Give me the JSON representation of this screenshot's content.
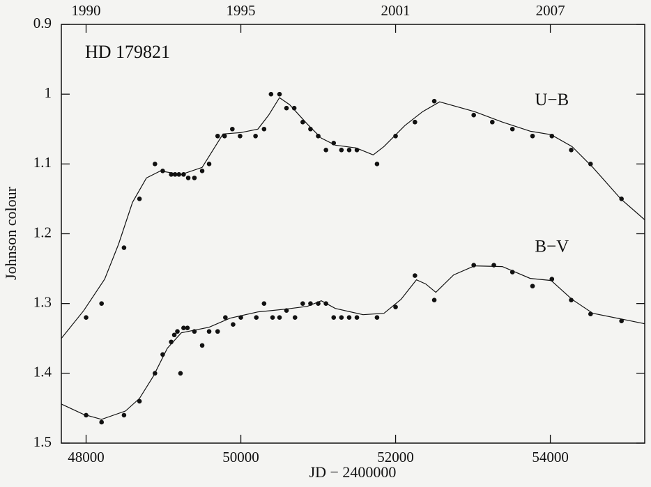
{
  "chart_data": {
    "type": "scatter",
    "title": "HD 179821",
    "xlabel": "JD − 2400000",
    "ylabel": "Johnson colour",
    "color": "#111111",
    "y_inverted": true,
    "xlim": [
      47680,
      55220
    ],
    "xticks": [
      48000,
      50000,
      52000,
      54000
    ],
    "x2ticks": [
      {
        "value": 48000,
        "label": "1990"
      },
      {
        "value": 50000,
        "label": "1995"
      },
      {
        "value": 52000,
        "label": "2001"
      },
      {
        "value": 54000,
        "label": "2007"
      }
    ],
    "ylim": [
      0.9,
      1.5
    ],
    "yticks": [
      0.9,
      1,
      1.1,
      1.2,
      1.3,
      1.4,
      1.5
    ],
    "series": [
      {
        "name": "U−B",
        "label_at": [
          53800,
          1.01
        ],
        "x": [
          48000,
          48200,
          48490,
          48690,
          48890,
          48990,
          49100,
          49150,
          49200,
          49260,
          49320,
          49400,
          49500,
          49590,
          49700,
          49790,
          49890,
          49990,
          50190,
          50300,
          50390,
          50500,
          50590,
          50690,
          50800,
          50900,
          51000,
          51100,
          51200,
          51300,
          51400,
          51500,
          51760,
          52000,
          52250,
          52500,
          53010,
          53250,
          53510,
          53770,
          54020,
          54270,
          54520,
          54920
        ],
        "values": [
          1.32,
          1.3,
          1.22,
          1.15,
          1.1,
          1.11,
          1.115,
          1.115,
          1.115,
          1.115,
          1.12,
          1.12,
          1.11,
          1.1,
          1.06,
          1.06,
          1.05,
          1.06,
          1.06,
          1.05,
          1.0,
          1.0,
          1.02,
          1.02,
          1.04,
          1.05,
          1.06,
          1.08,
          1.07,
          1.08,
          1.08,
          1.08,
          1.1,
          1.06,
          1.04,
          1.01,
          1.03,
          1.04,
          1.05,
          1.06,
          1.06,
          1.08,
          1.1,
          1.15
        ],
        "fit_x": [
          47680,
          47970,
          48240,
          48420,
          48600,
          48780,
          48960,
          49230,
          49500,
          49640,
          49770,
          50000,
          50220,
          50360,
          50500,
          50630,
          50860,
          51040,
          51220,
          51490,
          51710,
          51850,
          52120,
          52350,
          52570,
          53020,
          53380,
          53740,
          54010,
          54280,
          54550,
          54910,
          55220
        ],
        "fit": [
          1.35,
          1.31,
          1.265,
          1.215,
          1.155,
          1.12,
          1.11,
          1.115,
          1.105,
          1.08,
          1.057,
          1.055,
          1.05,
          1.03,
          1.005,
          1.015,
          1.043,
          1.063,
          1.073,
          1.077,
          1.087,
          1.075,
          1.045,
          1.025,
          1.011,
          1.025,
          1.04,
          1.053,
          1.058,
          1.075,
          1.105,
          1.15,
          1.18
        ]
      },
      {
        "name": "B−V",
        "label_at": [
          53800,
          1.22
        ],
        "x": [
          48000,
          48200,
          48490,
          48690,
          48890,
          48990,
          49100,
          49140,
          49180,
          49220,
          49260,
          49310,
          49400,
          49500,
          49590,
          49700,
          49800,
          49900,
          50000,
          50200,
          50300,
          50410,
          50500,
          50590,
          50700,
          50800,
          50900,
          51000,
          51100,
          51200,
          51300,
          51400,
          51500,
          51760,
          52000,
          52250,
          52500,
          53010,
          53270,
          53510,
          53770,
          54020,
          54270,
          54520,
          54920
        ],
        "values": [
          1.46,
          1.47,
          1.46,
          1.44,
          1.4,
          1.373,
          1.355,
          1.345,
          1.34,
          1.4,
          1.335,
          1.335,
          1.34,
          1.36,
          1.34,
          1.34,
          1.32,
          1.33,
          1.32,
          1.32,
          1.3,
          1.32,
          1.32,
          1.31,
          1.32,
          1.3,
          1.3,
          1.3,
          1.3,
          1.32,
          1.32,
          1.32,
          1.32,
          1.32,
          1.305,
          1.26,
          1.295,
          1.245,
          1.245,
          1.255,
          1.275,
          1.265,
          1.295,
          1.315,
          1.325
        ],
        "fit_x": [
          47680,
          47970,
          48200,
          48510,
          48690,
          48870,
          49050,
          49230,
          49410,
          49590,
          49860,
          50220,
          50580,
          50860,
          51040,
          51220,
          51580,
          51850,
          52070,
          52270,
          52390,
          52520,
          52750,
          53020,
          53380,
          53740,
          54010,
          54280,
          54550,
          54910,
          55220
        ],
        "fit": [
          1.444,
          1.459,
          1.466,
          1.454,
          1.436,
          1.404,
          1.364,
          1.342,
          1.338,
          1.334,
          1.321,
          1.312,
          1.308,
          1.304,
          1.296,
          1.307,
          1.316,
          1.314,
          1.294,
          1.266,
          1.272,
          1.284,
          1.259,
          1.246,
          1.247,
          1.264,
          1.267,
          1.294,
          1.314,
          1.322,
          1.329
        ]
      }
    ]
  }
}
